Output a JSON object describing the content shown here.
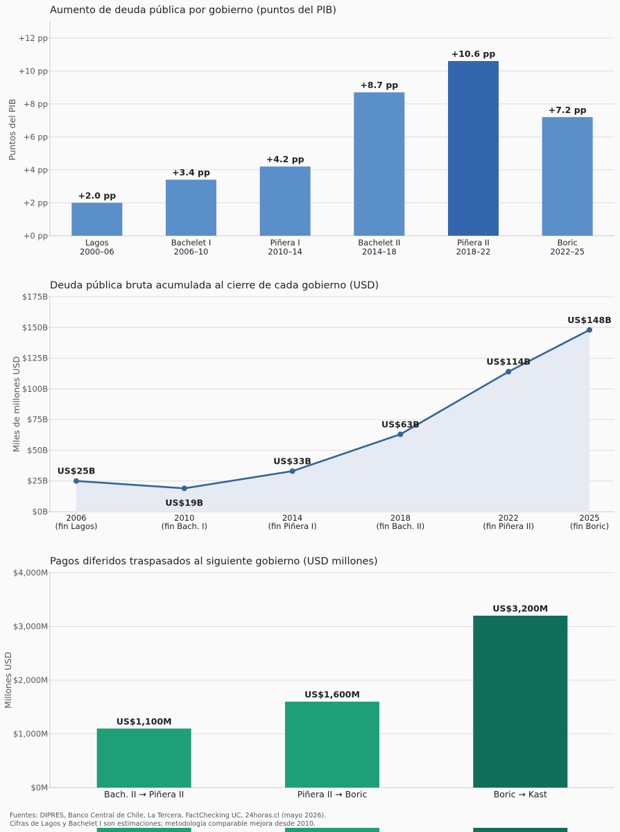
{
  "chart_data": [
    {
      "type": "bar",
      "title": "Aumento de deuda pública por gobierno (puntos del PIB)",
      "ylabel": "Puntos del PIB",
      "ylim": [
        0,
        13
      ],
      "yticks": [
        0,
        2,
        4,
        6,
        8,
        10,
        12
      ],
      "ytick_labels": [
        "+0 pp",
        "+2 pp",
        "+4 pp",
        "+6 pp",
        "+8 pp",
        "+10 pp",
        "+12 pp"
      ],
      "grid": true,
      "categories": [
        [
          "Lagos",
          "2000–06"
        ],
        [
          "Bachelet I",
          "2006–10"
        ],
        [
          "Piñera I",
          "2010–14"
        ],
        [
          "Bachelet II",
          "2014–18"
        ],
        [
          "Piñera II",
          "2018–22"
        ],
        [
          "Boric",
          "2022–25"
        ]
      ],
      "values": [
        2.0,
        3.4,
        4.2,
        8.7,
        10.6,
        7.2
      ],
      "value_labels": [
        "+2.0 pp",
        "+3.4 pp",
        "+4.2 pp",
        "+8.7 pp",
        "+10.6 pp",
        "+7.2 pp"
      ],
      "colors": [
        "#5b8fc9",
        "#5b8fc9",
        "#5b8fc9",
        "#5b8fc9",
        "#3366ad",
        "#5b8fc9"
      ]
    },
    {
      "type": "line",
      "title": "Deuda pública bruta acumulada al cierre de cada gobierno (USD)",
      "ylabel": "Miles de millones USD",
      "ylim": [
        0,
        175
      ],
      "yticks": [
        0,
        25,
        50,
        75,
        100,
        125,
        150,
        175
      ],
      "ytick_labels": [
        "$0B",
        "$25B",
        "$50B",
        "$75B",
        "$100B",
        "$125B",
        "$150B",
        "$175B"
      ],
      "grid": true,
      "x": [
        2006,
        2010,
        2014,
        2018,
        2022,
        2025
      ],
      "x_labels": [
        [
          "2006",
          "(fin Lagos)"
        ],
        [
          "2010",
          "(fin Bach. I)"
        ],
        [
          "2014",
          "(fin Piñera I)"
        ],
        [
          "2018",
          "(fin Bach. II)"
        ],
        [
          "2022",
          "(fin Piñera II)"
        ],
        [
          "2025",
          "(fin Boric)"
        ]
      ],
      "values": [
        25,
        19,
        33,
        63,
        114,
        148
      ],
      "value_labels": [
        "US$25B",
        "US$19B",
        "US$33B",
        "US$63B",
        "US$114B",
        "US$148B"
      ],
      "line_color": "#336699",
      "fill_color": "#e5eaf3"
    },
    {
      "type": "bar",
      "title": "Pagos diferidos traspasados al siguiente gobierno (USD millones)",
      "ylabel": "Millones USD",
      "ylim": [
        0,
        4000
      ],
      "yticks": [
        0,
        1000,
        2000,
        3000,
        4000
      ],
      "ytick_labels": [
        "$0M",
        "$1,000M",
        "$2,000M",
        "$3,000M",
        "$4,000M"
      ],
      "grid": true,
      "categories": [
        "Bach. II → Piñera II",
        "Piñera II → Boric",
        "Boric → Kast"
      ],
      "values": [
        1100,
        1600,
        3200
      ],
      "value_labels": [
        "US$1,100M",
        "US$1,600M",
        "US$3,200M"
      ],
      "colors": [
        "#1f9f78",
        "#1f9f78",
        "#116e5a"
      ]
    }
  ],
  "footer": {
    "line1": "Fuentes: DIPRES, Banco Central de Chile, La Tercera, FactChecking UC, 24horas.cl (mayo 2026).",
    "line2": "Cifras de Lagos y Bachelet I son estimaciones; metodología comparable mejora desde 2010."
  }
}
